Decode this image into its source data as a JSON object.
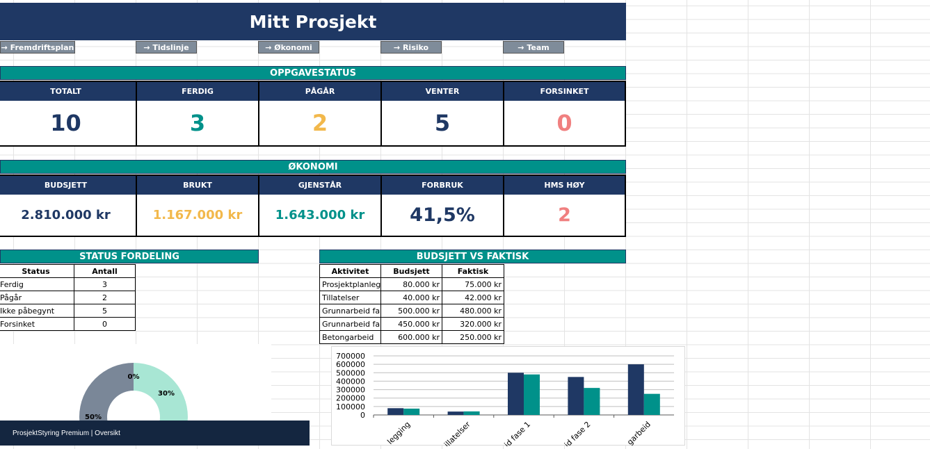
{
  "title": "Mitt Prosjekt",
  "nav": [
    "→ Fremdriftsplan",
    "→ Tidslinje",
    "→ Økonomi",
    "→ Risiko",
    "→ Team"
  ],
  "task_status": {
    "heading": "OPPGAVESTATUS",
    "headers": [
      "TOTALT",
      "FERDIG",
      "PÅGÅR",
      "VENTER",
      "FORSINKET"
    ],
    "values": [
      "10",
      "3",
      "2",
      "5",
      "0"
    ],
    "colors": [
      "#1f3864",
      "#00918a",
      "#f2b84b",
      "#1f3864",
      "#f08080"
    ]
  },
  "economy": {
    "heading": "ØKONOMI",
    "headers": [
      "BUDSJETT",
      "BRUKT",
      "GJENSTÅR",
      "FORBRUK",
      "HMS HØY"
    ],
    "values": [
      "2.810.000 kr",
      "1.167.000 kr",
      "1.643.000 kr",
      "41,5%",
      "2"
    ],
    "colors": [
      "#1f3864",
      "#f2b84b",
      "#00918a",
      "#1f3864",
      "#f08080"
    ]
  },
  "status_distribution": {
    "heading": "STATUS FORDELING",
    "columns": [
      "Status",
      "Antall"
    ],
    "rows": [
      [
        "Ferdig",
        "3"
      ],
      [
        "Pågår",
        "2"
      ],
      [
        "Ikke påbegynt",
        "5"
      ],
      [
        "Forsinket",
        "0"
      ]
    ]
  },
  "budget_vs_actual": {
    "heading": "BUDSJETT VS FAKTISK",
    "columns": [
      "Aktivitet",
      "Budsjett",
      "Faktisk"
    ],
    "rows": [
      [
        "Prosjektplanleg",
        "80.000 kr",
        "75.000 kr"
      ],
      [
        "Tillatelser",
        "40.000 kr",
        "42.000 kr"
      ],
      [
        "Grunnarbeid fa",
        "500.000 kr",
        "480.000 kr"
      ],
      [
        "Grunnarbeid fa",
        "450.000 kr",
        "320.000 kr"
      ],
      [
        "Betongarbeid",
        "600.000 kr",
        "250.000 kr"
      ]
    ]
  },
  "chart_data": [
    {
      "type": "pie",
      "labels": [
        "0%",
        "30%",
        "50%"
      ],
      "values": [
        0,
        30,
        50
      ],
      "colors": [
        "#1f3864",
        "#a8e6d4",
        "#7a8798"
      ]
    },
    {
      "type": "bar",
      "categories": [
        "legging",
        "illatelser",
        "id fase 1",
        "id fase 2",
        "garbeid"
      ],
      "series": [
        {
          "values": [
            80000,
            40000,
            500000,
            450000,
            600000
          ],
          "color": "#1f3864"
        },
        {
          "values": [
            75000,
            42000,
            480000,
            320000,
            250000
          ],
          "color": "#00918a"
        }
      ],
      "yticks": [
        "700000",
        "600000",
        "500000",
        "400000",
        "300000",
        "200000",
        "100000",
        "0"
      ],
      "ylim": [
        0,
        700000
      ]
    }
  ],
  "footer": "ProsjektStyring Premium | Oversikt"
}
